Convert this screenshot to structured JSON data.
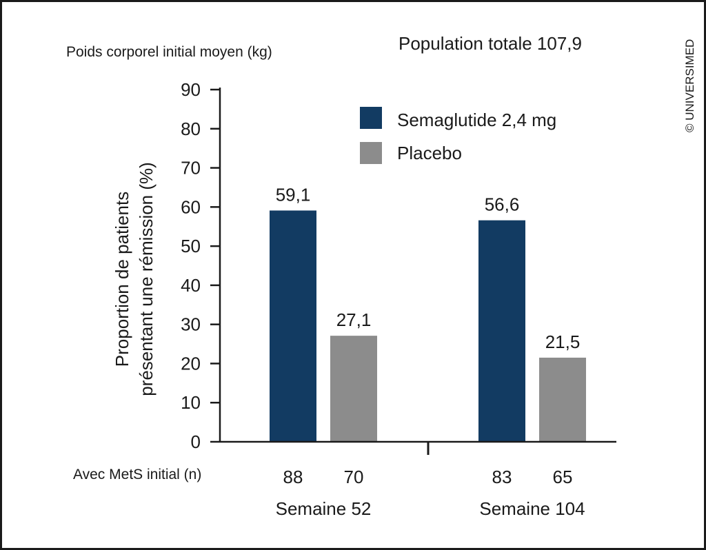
{
  "header": {
    "left_label": "Poids corporel initial moyen (kg)",
    "right_label": "Population totale 107,9"
  },
  "copyright": "© UNIVERSIMED",
  "n_row_label": "Avec MetS initial (n)",
  "colors": {
    "semaglutide": "#123b62",
    "placebo": "#8c8c8c",
    "axis": "#1a1a1a"
  },
  "chart_data": {
    "type": "bar",
    "categories": [
      "Semaine 52",
      "Semaine 104"
    ],
    "ylabel_line1": "Proportion de patients",
    "ylabel_line2": "présentant une rémission (%)",
    "ylim": [
      0,
      90
    ],
    "yticks": [
      0,
      10,
      20,
      30,
      40,
      50,
      60,
      70,
      80,
      90
    ],
    "legend_position": "top-right",
    "grid": false,
    "series": [
      {
        "name": "Semaglutide 2,4 mg",
        "values": [
          59.1,
          56.6
        ],
        "labels": [
          "59,1",
          "56,6"
        ],
        "n": [
          "88",
          "83"
        ],
        "color": "#123b62"
      },
      {
        "name": "Placebo",
        "values": [
          27.1,
          21.5
        ],
        "labels": [
          "27,1",
          "21,5"
        ],
        "n": [
          "70",
          "65"
        ],
        "color": "#8c8c8c"
      }
    ]
  }
}
